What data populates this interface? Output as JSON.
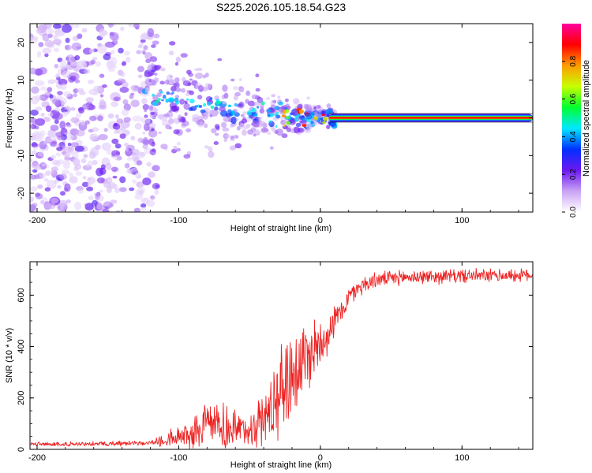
{
  "title": "S225.2026.105.18.54.G23",
  "colors": {
    "line": "#ee2222",
    "axis": "#000000",
    "dot_purple": "#7a22e8",
    "ridge": "#ff1a1a"
  },
  "chart_data": [
    {
      "type": "heatmap",
      "name": "spectrogram",
      "xlabel": "Height of straight line (km)",
      "ylabel": "Frequency (Hz)",
      "xlim": [
        -205,
        150
      ],
      "ylim": [
        -25,
        25
      ],
      "x_ticks": [
        -200,
        -100,
        0,
        100
      ],
      "y_ticks": [
        -20,
        -10,
        0,
        10,
        20
      ],
      "ridge": {
        "x_start": 12,
        "x_end": 150,
        "frequency": 0,
        "amplitude": 1.0
      },
      "colorbar": {
        "label": "Normalized spectral amplitude",
        "range": [
          0.0,
          1.0
        ],
        "ticks": [
          "0.0",
          "0.2",
          "0.4",
          "0.6",
          "0.8"
        ],
        "colors": [
          "#ffffff",
          "#c9a3f5",
          "#6b18f0",
          "#0030ff",
          "#00e8ff",
          "#00ff30",
          "#c8ff00",
          "#ff9a00",
          "#ff0000",
          "#ff00a0"
        ]
      }
    },
    {
      "type": "line",
      "name": "snr",
      "xlabel": "Height of straight line (km)",
      "ylabel": "SNR (10 * v/v)",
      "xlim": [
        -205,
        150
      ],
      "ylim": [
        0,
        730
      ],
      "x_ticks": [
        -200,
        -100,
        0,
        100
      ],
      "y_ticks": [
        0,
        200,
        400,
        600
      ],
      "envelope": {
        "x": [
          -205,
          -180,
          -150,
          -120,
          -110,
          -100,
          -90,
          -80,
          -70,
          -60,
          -50,
          -40,
          -35,
          -30,
          -25,
          -20,
          -15,
          -10,
          -5,
          0,
          5,
          10,
          15,
          20,
          25,
          30,
          40,
          60,
          80,
          100,
          120,
          150
        ],
        "y": [
          20,
          20,
          22,
          25,
          35,
          50,
          65,
          90,
          90,
          70,
          80,
          120,
          150,
          220,
          260,
          300,
          330,
          350,
          390,
          420,
          450,
          500,
          540,
          590,
          620,
          640,
          660,
          670,
          672,
          675,
          675,
          678
        ]
      },
      "noise": {
        "x": [
          -205,
          -120,
          -100,
          -80,
          -50,
          -30,
          -20,
          -5,
          10,
          20,
          40,
          150
        ],
        "amp": [
          10,
          12,
          50,
          120,
          80,
          200,
          250,
          150,
          70,
          50,
          35,
          30
        ]
      }
    }
  ]
}
